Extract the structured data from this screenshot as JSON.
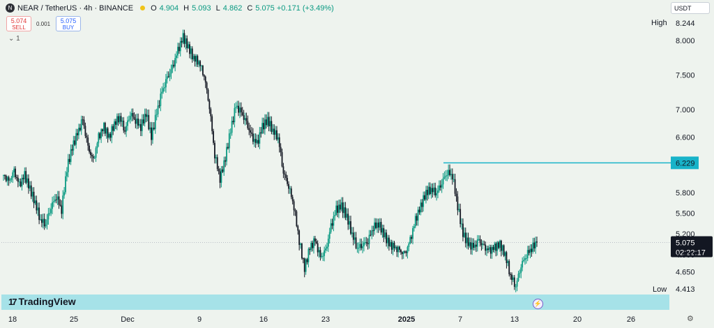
{
  "header": {
    "symbol": "NEAR / TetherUS · 4h · BINANCE",
    "icon": "near-coin-icon",
    "o_label": "O",
    "o_value": "4.904",
    "h_label": "H",
    "h_value": "5.093",
    "l_label": "L",
    "l_value": "4.862",
    "c_label": "C",
    "c_value": "5.075 +0.171 (+3.49%)"
  },
  "trade": {
    "sell_price": "5.074",
    "sell_label": "SELL",
    "spread": "0.001",
    "buy_price": "5.075",
    "buy_label": "BUY"
  },
  "indicator_toggle": "⌄ 1",
  "currency": "USDT",
  "watermark": "TradingView",
  "colors": {
    "up": "#089981",
    "down": "#131722",
    "line": "#18b3c9",
    "background": "#eef3ee"
  },
  "chart_data": {
    "type": "candlestick",
    "symbol": "NEAR / TetherUS",
    "interval": "4h",
    "exchange": "BINANCE",
    "y_ticks": [
      "8.000",
      "7.500",
      "7.000",
      "6.600",
      "5.800",
      "5.500",
      "5.200",
      "4.900",
      "4.650"
    ],
    "y_ticks_num": [
      8.0,
      7.5,
      7.0,
      6.6,
      5.8,
      5.5,
      5.2,
      4.9,
      4.65
    ],
    "ylim": [
      4.413,
      8.244
    ],
    "x_ticks": [
      "18",
      "25",
      "Dec",
      "9",
      "16",
      "23",
      "2025",
      "7",
      "13",
      "20",
      "26"
    ],
    "high_label": "High",
    "high_value": "8.244",
    "low_label": "Low",
    "low_value": "4.413",
    "horizontal_line": {
      "value": "6.229",
      "num": 6.229
    },
    "last_price": {
      "value": "5.075",
      "countdown": "02:22:17",
      "num": 5.075
    },
    "close_path": [
      6.05,
      5.95,
      6.1,
      5.9,
      6.05,
      5.85,
      5.65,
      5.4,
      5.35,
      5.6,
      5.75,
      5.55,
      6.15,
      6.45,
      6.65,
      6.85,
      6.45,
      6.25,
      6.6,
      6.75,
      6.6,
      6.8,
      6.9,
      6.7,
      6.95,
      6.85,
      6.75,
      6.95,
      6.6,
      6.95,
      7.25,
      7.45,
      7.6,
      7.85,
      8.05,
      7.9,
      7.75,
      7.7,
      7.5,
      7.05,
      6.35,
      6.0,
      6.3,
      6.7,
      7.05,
      6.95,
      6.8,
      6.6,
      6.5,
      6.75,
      6.85,
      6.7,
      6.6,
      6.1,
      5.9,
      5.6,
      5.1,
      4.7,
      5.0,
      5.1,
      4.85,
      4.95,
      5.3,
      5.55,
      5.6,
      5.45,
      5.2,
      5.0,
      5.05,
      5.1,
      5.3,
      5.35,
      5.2,
      5.05,
      5.0,
      4.95,
      4.9,
      5.1,
      5.4,
      5.6,
      5.8,
      5.85,
      5.8,
      5.95,
      6.1,
      6.05,
      5.6,
      5.2,
      5.05,
      5.0,
      5.1,
      5.0,
      4.95,
      5.0,
      5.05,
      4.9,
      4.6,
      4.45,
      4.75,
      4.9,
      5.0,
      5.075
    ]
  }
}
